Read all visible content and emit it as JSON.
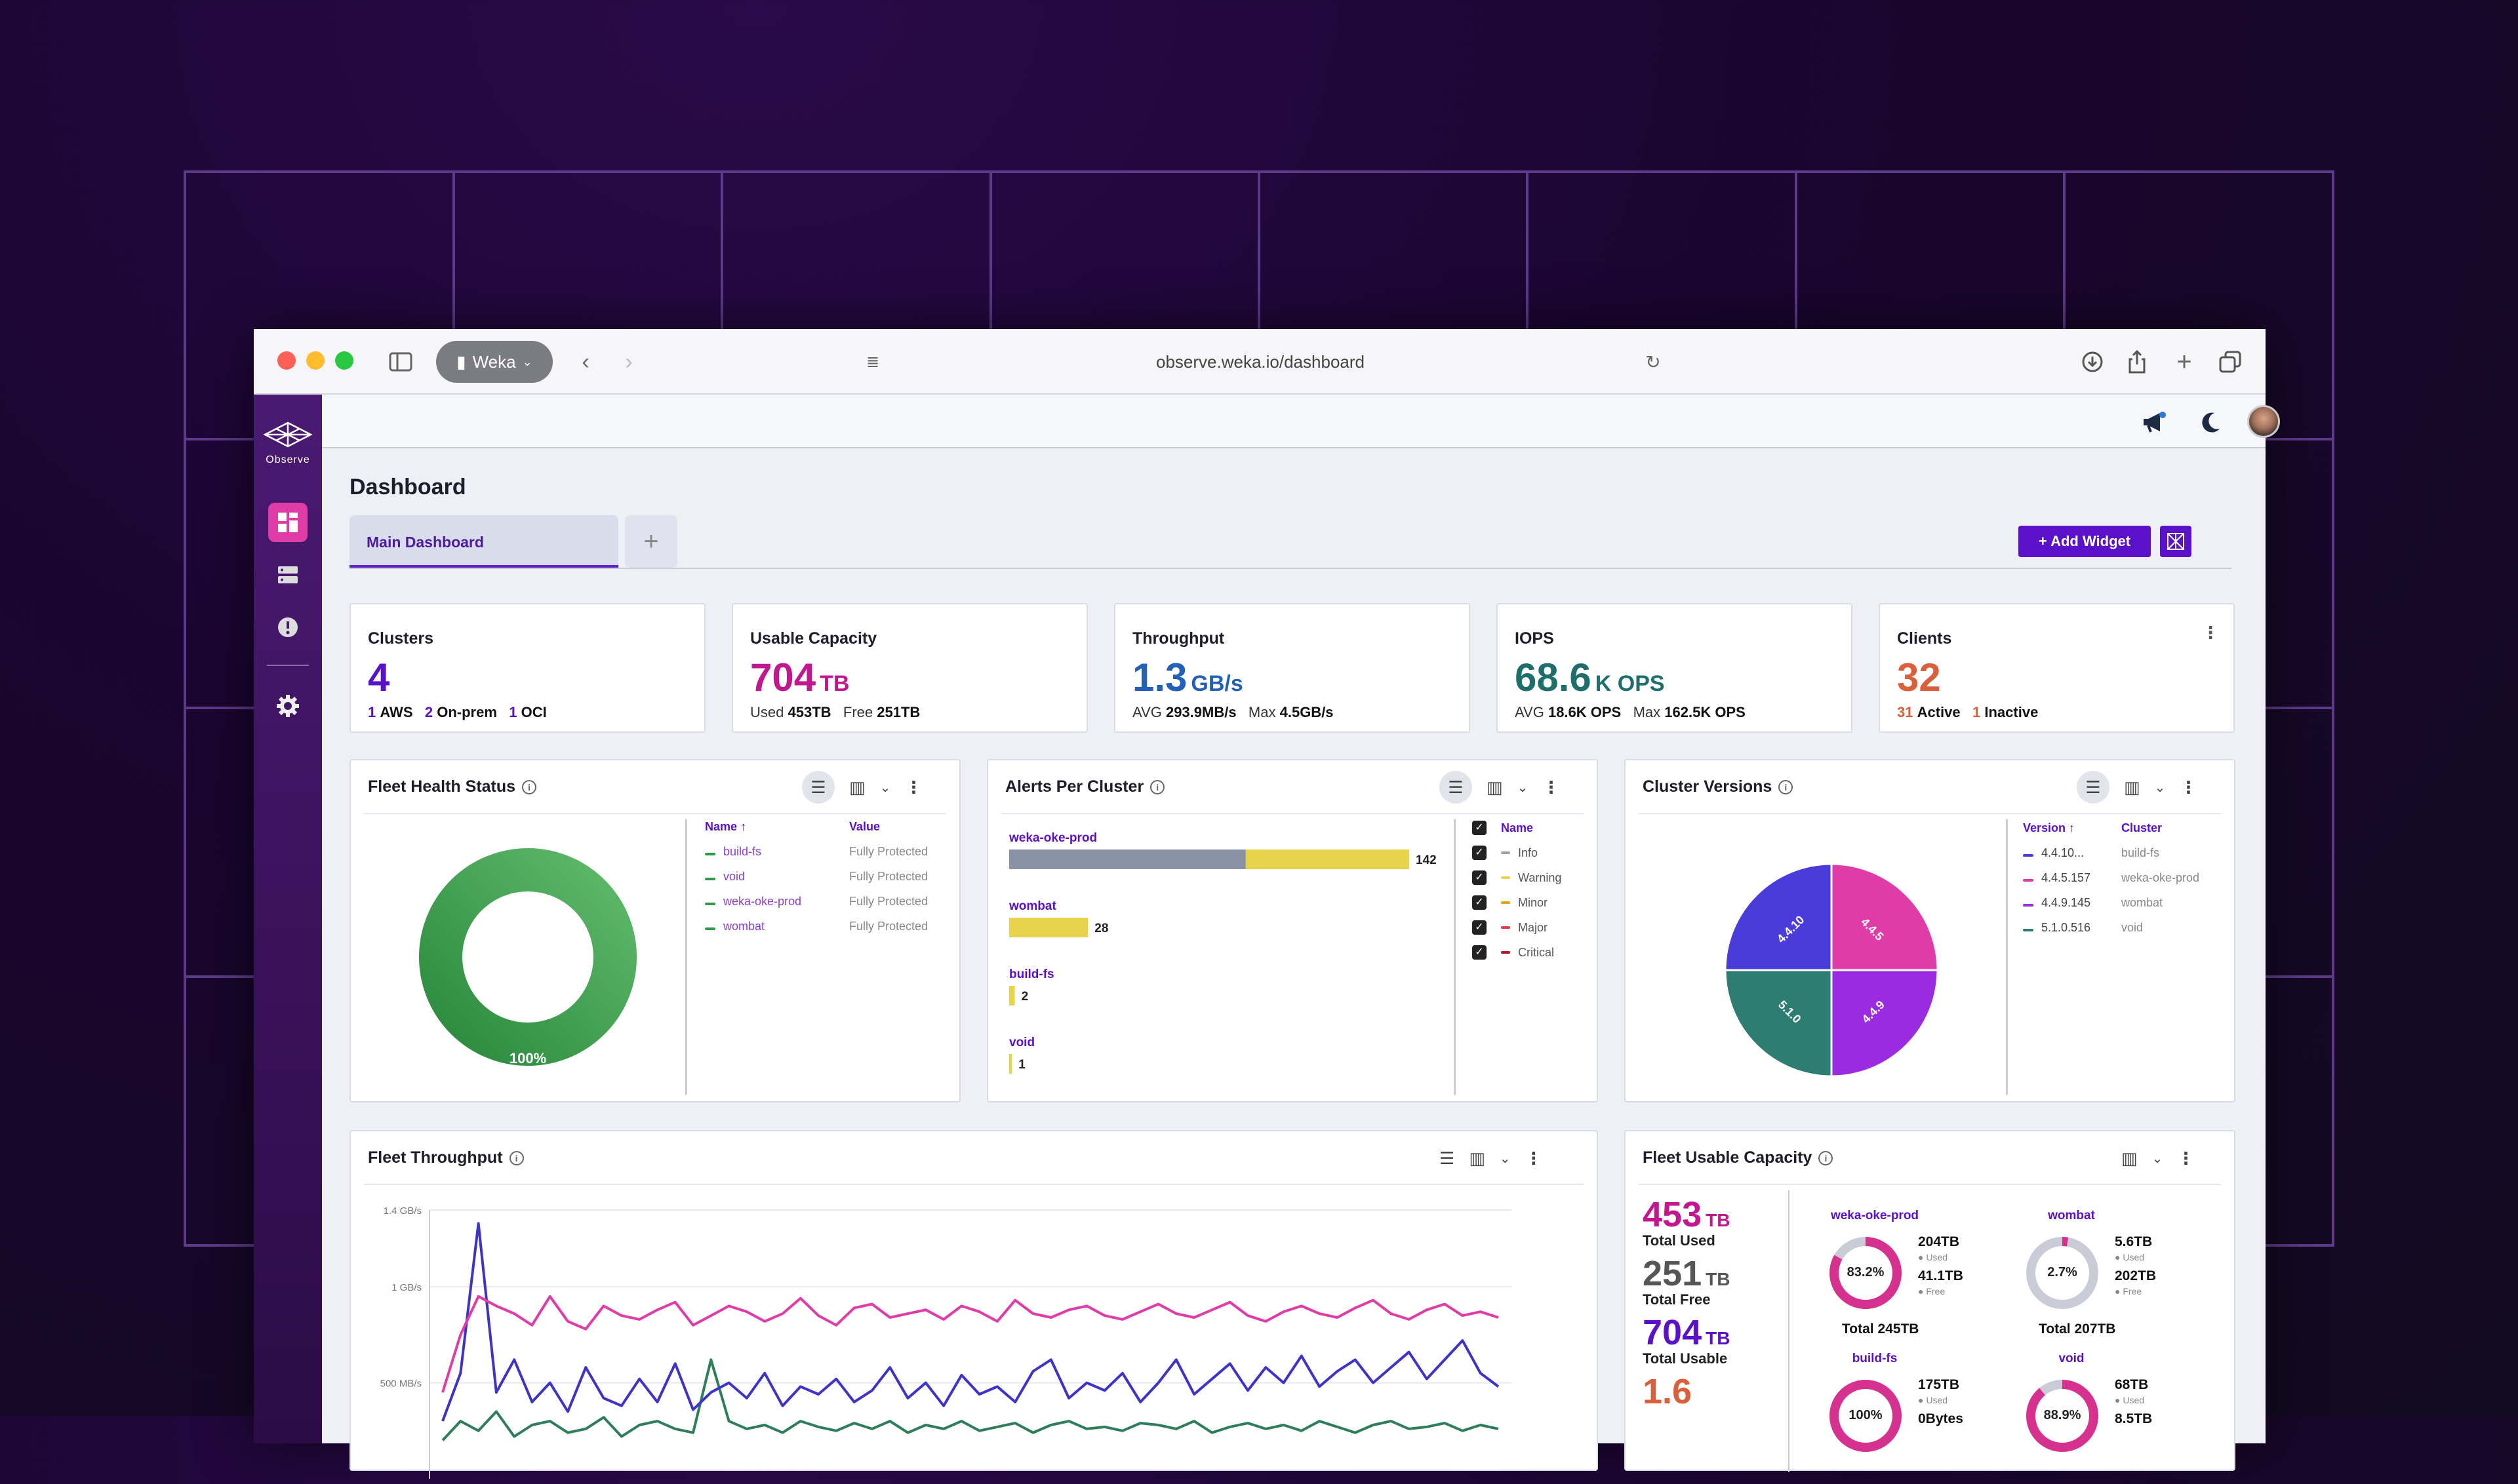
{
  "browser": {
    "tab_label": "Weka",
    "url": "observe.weka.io/dashboard"
  },
  "sidebar": {
    "logo_text": "Observe",
    "items": [
      {
        "icon": "dashboard-icon",
        "active": true
      },
      {
        "icon": "servers-icon",
        "active": false
      },
      {
        "icon": "alerts-icon",
        "active": false
      },
      {
        "icon": "gear-icon",
        "active": false
      }
    ]
  },
  "page": {
    "title": "Dashboard",
    "tabs": [
      {
        "label": "Main Dashboard"
      }
    ],
    "add_tab_label": "+",
    "add_widget_label": "+ Add Widget"
  },
  "colors": {
    "accent": "#5a11c9",
    "magenta": "#c2188f",
    "blue": "#2361b7",
    "teal": "#1f6e6b",
    "orange": "#d9603b"
  },
  "kpis": {
    "clusters": {
      "label": "Clusters",
      "value": "4",
      "sub": [
        {
          "num": "1",
          "text": "AWS"
        },
        {
          "num": "2",
          "text": "On-prem"
        },
        {
          "num": "1",
          "text": "OCI"
        }
      ]
    },
    "capacity": {
      "label": "Usable Capacity",
      "value": "704",
      "unit": "TB",
      "used_label": "Used",
      "used": "453TB",
      "free_label": "Free",
      "free": "251TB"
    },
    "throughput": {
      "label": "Throughput",
      "value": "1.3",
      "unit": "GB/s",
      "avg_label": "AVG",
      "avg": "293.9MB/s",
      "max_label": "Max",
      "max": "4.5GB/s"
    },
    "iops": {
      "label": "IOPS",
      "value": "68.6",
      "unit": "K OPS",
      "avg_label": "AVG",
      "avg": "18.6K OPS",
      "max_label": "Max",
      "max": "162.5K OPS"
    },
    "clients": {
      "label": "Clients",
      "value": "32",
      "active_num": "31",
      "active_label": "Active",
      "inactive_num": "1",
      "inactive_label": "Inactive"
    }
  },
  "fleet_health": {
    "title": "Fleet Health Status",
    "donut_label": "100%",
    "donut_fraction": 1.0,
    "columns": [
      "Name ↑",
      "Value"
    ],
    "rows": [
      {
        "name": "build-fs",
        "value": "Fully Protected"
      },
      {
        "name": "void",
        "value": "Fully Protected"
      },
      {
        "name": "weka-oke-prod",
        "value": "Fully Protected"
      },
      {
        "name": "wombat",
        "value": "Fully Protected"
      }
    ]
  },
  "alerts": {
    "title": "Alerts Per Cluster",
    "legend_header": "Name",
    "legend": [
      "Info",
      "Warning",
      "Minor",
      "Major",
      "Critical"
    ],
    "legend_colors": [
      "#9aa0ab",
      "#e8d44a",
      "#e6a11f",
      "#d94040",
      "#b0172f"
    ]
  },
  "cluster_versions": {
    "title": "Cluster Versions",
    "columns": [
      "Version ↑",
      "Cluster"
    ],
    "rows": [
      {
        "version": "4.4.10...",
        "cluster": "build-fs",
        "color": "#4a3cdb"
      },
      {
        "version": "4.4.5.157",
        "cluster": "weka-oke-prod",
        "color": "#e03ca8"
      },
      {
        "version": "4.4.9.145",
        "cluster": "wombat",
        "color": "#9b2be0"
      },
      {
        "version": "5.1.0.516",
        "cluster": "void",
        "color": "#2e7d73"
      }
    ],
    "slice_labels": [
      "4.4.10",
      "4.4.5",
      "4.4.9",
      "5.1.0"
    ]
  },
  "fleet_throughput": {
    "title": "Fleet Throughput",
    "ylabels": [
      "1.4 GB/s",
      "1 GB/s",
      "500 MB/s"
    ]
  },
  "fleet_capacity": {
    "title": "Fleet Usable Capacity",
    "total_used": {
      "value": "453",
      "unit": "TB",
      "label": "Total Used"
    },
    "total_free": {
      "value": "251",
      "unit": "TB",
      "label": "Total Free"
    },
    "total_usable": {
      "value": "704",
      "unit": "TB",
      "label": "Total Usable"
    },
    "next_value": "1.6",
    "clusters": [
      {
        "name": "weka-oke-prod",
        "pct": "83.2%",
        "fraction": 0.832,
        "used": "204TB",
        "used_label": "Used",
        "free": "41.1TB",
        "free_label": "Free",
        "total": "Total 245TB"
      },
      {
        "name": "wombat",
        "pct": "2.7%",
        "fraction": 0.027,
        "used": "5.6TB",
        "used_label": "Used",
        "free": "202TB",
        "free_label": "Free",
        "total": "Total 207TB"
      },
      {
        "name": "build-fs",
        "pct": "100%",
        "fraction": 1.0,
        "used": "175TB",
        "used_label": "Used",
        "free": "0Bytes",
        "free_label": "",
        "total": ""
      },
      {
        "name": "void",
        "pct": "88.9%",
        "fraction": 0.889,
        "used": "68TB",
        "used_label": "Used",
        "free": "8.5TB",
        "free_label": "",
        "total": ""
      }
    ]
  },
  "chart_data": [
    {
      "type": "pie",
      "title": "Fleet Health Status",
      "categories": [
        "Fully Protected"
      ],
      "values": [
        100
      ]
    },
    {
      "type": "bar",
      "title": "Alerts Per Cluster",
      "categories": [
        "weka-oke-prod",
        "wombat",
        "build-fs",
        "void"
      ],
      "totals": [
        142,
        28,
        2,
        1
      ],
      "series": [
        {
          "name": "Info",
          "values": [
            84,
            0,
            0,
            0
          ]
        },
        {
          "name": "Warning",
          "values": [
            58,
            28,
            2,
            1
          ]
        }
      ]
    },
    {
      "type": "pie",
      "title": "Cluster Versions",
      "categories": [
        "4.4.10",
        "4.4.5",
        "4.4.9",
        "5.1.0"
      ],
      "values": [
        1,
        1,
        1,
        1
      ]
    },
    {
      "type": "line",
      "title": "Fleet Throughput",
      "ylabels": [
        "1.4 GB/s",
        "1 GB/s",
        "500 MB/s"
      ],
      "ylim": [
        0,
        1.4
      ],
      "series": [
        {
          "color": "#e03ca8",
          "values": [
            0.45,
            0.75,
            0.95,
            0.9,
            0.86,
            0.8,
            0.95,
            0.82,
            0.78,
            0.9,
            0.85,
            0.83,
            0.88,
            0.92,
            0.8,
            0.85,
            0.9,
            0.87,
            0.82,
            0.86,
            0.94,
            0.85,
            0.8,
            0.89,
            0.91,
            0.84,
            0.86,
            0.88,
            0.83,
            0.9,
            0.87,
            0.82,
            0.93,
            0.86,
            0.84,
            0.88,
            0.9,
            0.85,
            0.83,
            0.87,
            0.91,
            0.86,
            0.84,
            0.88,
            0.92,
            0.85,
            0.82,
            0.87,
            0.9,
            0.86,
            0.84,
            0.89,
            0.93,
            0.86,
            0.83,
            0.88,
            0.91,
            0.85,
            0.87,
            0.84
          ]
        },
        {
          "color": "#3d33c9",
          "values": [
            0.3,
            0.55,
            1.33,
            0.45,
            0.62,
            0.4,
            0.5,
            0.35,
            0.58,
            0.42,
            0.38,
            0.52,
            0.4,
            0.6,
            0.36,
            0.45,
            0.5,
            0.42,
            0.55,
            0.38,
            0.48,
            0.44,
            0.52,
            0.4,
            0.46,
            0.58,
            0.42,
            0.5,
            0.38,
            0.54,
            0.44,
            0.48,
            0.4,
            0.56,
            0.62,
            0.42,
            0.5,
            0.46,
            0.55,
            0.4,
            0.5,
            0.62,
            0.44,
            0.52,
            0.6,
            0.46,
            0.58,
            0.5,
            0.64,
            0.48,
            0.56,
            0.62,
            0.5,
            0.58,
            0.66,
            0.52,
            0.62,
            0.72,
            0.55,
            0.48
          ]
        },
        {
          "color": "#2e7d5b",
          "values": [
            0.2,
            0.3,
            0.25,
            0.35,
            0.22,
            0.28,
            0.3,
            0.24,
            0.26,
            0.32,
            0.22,
            0.28,
            0.3,
            0.26,
            0.24,
            0.62,
            0.3,
            0.26,
            0.28,
            0.24,
            0.3,
            0.27,
            0.25,
            0.29,
            0.26,
            0.3,
            0.24,
            0.28,
            0.26,
            0.3,
            0.25,
            0.27,
            0.29,
            0.24,
            0.28,
            0.3,
            0.26,
            0.27,
            0.25,
            0.29,
            0.28,
            0.26,
            0.3,
            0.24,
            0.27,
            0.29,
            0.26,
            0.28,
            0.25,
            0.3,
            0.27,
            0.24,
            0.28,
            0.3,
            0.26,
            0.27,
            0.29,
            0.25,
            0.28,
            0.26
          ]
        }
      ]
    }
  ]
}
